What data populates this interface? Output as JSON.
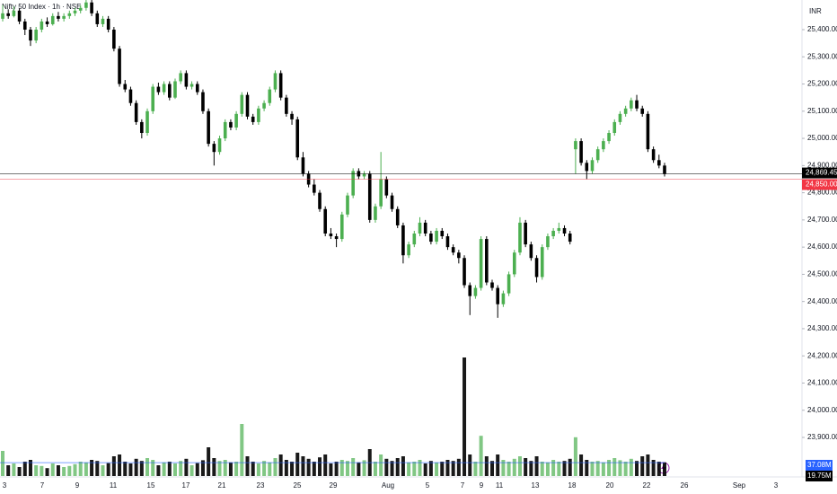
{
  "chart_data": {
    "type": "candlestick",
    "title": "Nifty 50 Index · 1h · NSE",
    "currency": "INR",
    "ylim": [
      23758,
      25509
    ],
    "yticks": [
      {
        "value": 23900,
        "label": "23,900.00"
      },
      {
        "value": 24000,
        "label": "24,000.00"
      },
      {
        "value": 24100,
        "label": "24,100.00"
      },
      {
        "value": 24200,
        "label": "24,200.00"
      },
      {
        "value": 24300,
        "label": "24,300.00"
      },
      {
        "value": 24400,
        "label": "24,400.00"
      },
      {
        "value": 24500,
        "label": "24,500.00"
      },
      {
        "value": 24600,
        "label": "24,600.00"
      },
      {
        "value": 24700,
        "label": "24,700.00"
      },
      {
        "value": 24800,
        "label": "24,800.00"
      },
      {
        "value": 24900,
        "label": "24,900.00"
      },
      {
        "value": 25000,
        "label": "25,000.00"
      },
      {
        "value": 25100,
        "label": "25,100.00"
      },
      {
        "value": 25200,
        "label": "25,200.00"
      },
      {
        "value": 25300,
        "label": "25,300.00"
      },
      {
        "value": 25400,
        "label": "25,400.00"
      }
    ],
    "time_labels": [
      "3",
      "7",
      "9",
      "11",
      "15",
      "17",
      "21",
      "23",
      "25",
      "29",
      "Aug",
      "5",
      "7",
      "9",
      "11",
      "13",
      "18",
      "20",
      "22",
      "26",
      "Sep",
      "3"
    ],
    "up_color": "#4caf50",
    "down_color": "#000000",
    "price_lines": [
      {
        "value": 24869.45,
        "label": "24,869.45",
        "color": "#000000"
      },
      {
        "value": 24850,
        "label": "24,850.00",
        "color": "#f23645"
      }
    ],
    "volume_ylim": [
      0,
      500
    ],
    "volume_labels": [
      {
        "value": 37.08,
        "label": "37.08M",
        "color": "#2962ff"
      },
      {
        "value": 19.75,
        "label": "19.75M",
        "color": "#000000"
      }
    ],
    "ohlc": [
      [
        25440,
        25490,
        25430,
        25460
      ],
      [
        25460,
        25475,
        25440,
        25450
      ],
      [
        25450,
        25485,
        25445,
        25470
      ],
      [
        25470,
        25478,
        25420,
        25430
      ],
      [
        25430,
        25440,
        25380,
        25400
      ],
      [
        25400,
        25410,
        25340,
        25360
      ],
      [
        25360,
        25410,
        25350,
        25400
      ],
      [
        25400,
        25440,
        25390,
        25430
      ],
      [
        25430,
        25445,
        25410,
        25420
      ],
      [
        25420,
        25460,
        25415,
        25450
      ],
      [
        25450,
        25465,
        25430,
        25440
      ],
      [
        25440,
        25460,
        25430,
        25450
      ],
      [
        25450,
        25470,
        25440,
        25460
      ],
      [
        25460,
        25480,
        25450,
        25470
      ],
      [
        25470,
        25490,
        25460,
        25480
      ],
      [
        25480,
        25520,
        25470,
        25500
      ],
      [
        25500,
        25510,
        25450,
        25460
      ],
      [
        25460,
        25470,
        25410,
        25420
      ],
      [
        25420,
        25450,
        25410,
        25440
      ],
      [
        25440,
        25450,
        25390,
        25400
      ],
      [
        25400,
        25410,
        25320,
        25330
      ],
      [
        25330,
        25340,
        25190,
        25200
      ],
      [
        25200,
        25215,
        25170,
        25180
      ],
      [
        25180,
        25190,
        25120,
        25130
      ],
      [
        25130,
        25140,
        25050,
        25060
      ],
      [
        25060,
        25070,
        25000,
        25020
      ],
      [
        25020,
        25110,
        25010,
        25100
      ],
      [
        25100,
        25200,
        25090,
        25190
      ],
      [
        25190,
        25205,
        25160,
        25170
      ],
      [
        25170,
        25210,
        25160,
        25200
      ],
      [
        25200,
        25210,
        25140,
        25150
      ],
      [
        25150,
        25220,
        25145,
        25210
      ],
      [
        25210,
        25250,
        25200,
        25240
      ],
      [
        25240,
        25250,
        25180,
        25190
      ],
      [
        25190,
        25210,
        25180,
        25200
      ],
      [
        25200,
        25210,
        25160,
        25170
      ],
      [
        25170,
        25180,
        25090,
        25100
      ],
      [
        25100,
        25110,
        24970,
        24980
      ],
      [
        24980,
        24990,
        24900,
        24950
      ],
      [
        24950,
        25010,
        24940,
        25000
      ],
      [
        25000,
        25070,
        24990,
        25060
      ],
      [
        25060,
        25070,
        25030,
        25040
      ],
      [
        25040,
        25100,
        25030,
        25090
      ],
      [
        25090,
        25170,
        25080,
        25160
      ],
      [
        25160,
        25170,
        25070,
        25080
      ],
      [
        25080,
        25090,
        25050,
        25060
      ],
      [
        25060,
        25120,
        25050,
        25110
      ],
      [
        25110,
        25140,
        25100,
        25130
      ],
      [
        25130,
        25190,
        25120,
        25180
      ],
      [
        25180,
        25250,
        25170,
        25240
      ],
      [
        25240,
        25250,
        25140,
        25150
      ],
      [
        25150,
        25160,
        25080,
        25090
      ],
      [
        25090,
        25100,
        25050,
        25070
      ],
      [
        25070,
        25080,
        24920,
        24930
      ],
      [
        24930,
        24950,
        24860,
        24870
      ],
      [
        24870,
        24880,
        24820,
        24830
      ],
      [
        24830,
        24850,
        24790,
        24800
      ],
      [
        24800,
        24810,
        24730,
        24740
      ],
      [
        24740,
        24750,
        24640,
        24650
      ],
      [
        24650,
        24670,
        24630,
        24640
      ],
      [
        24640,
        24650,
        24600,
        24630
      ],
      [
        24630,
        24730,
        24620,
        24720
      ],
      [
        24720,
        24800,
        24710,
        24790
      ],
      [
        24790,
        24890,
        24780,
        24880
      ],
      [
        24880,
        24890,
        24850,
        24860
      ],
      [
        24860,
        24880,
        24850,
        24870
      ],
      [
        24870,
        24880,
        24690,
        24700
      ],
      [
        24700,
        24760,
        24690,
        24750
      ],
      [
        24750,
        24950,
        24740,
        24850
      ],
      [
        24850,
        24860,
        24780,
        24790
      ],
      [
        24790,
        24800,
        24730,
        24740
      ],
      [
        24740,
        24750,
        24670,
        24680
      ],
      [
        24680,
        24690,
        24540,
        24570
      ],
      [
        24570,
        24620,
        24560,
        24610
      ],
      [
        24610,
        24660,
        24600,
        24650
      ],
      [
        24650,
        24710,
        24640,
        24690
      ],
      [
        24690,
        24700,
        24640,
        24650
      ],
      [
        24650,
        24660,
        24610,
        24620
      ],
      [
        24620,
        24670,
        24610,
        24660
      ],
      [
        24660,
        24670,
        24630,
        24640
      ],
      [
        24640,
        24650,
        24590,
        24600
      ],
      [
        24600,
        24610,
        24570,
        24580
      ],
      [
        24580,
        24590,
        24540,
        24560
      ],
      [
        24560,
        24570,
        24450,
        24460
      ],
      [
        24460,
        24470,
        24350,
        24420
      ],
      [
        24420,
        24460,
        24410,
        24450
      ],
      [
        24450,
        24640,
        24440,
        24630
      ],
      [
        24630,
        24640,
        24460,
        24470
      ],
      [
        24470,
        24480,
        24440,
        24450
      ],
      [
        24450,
        24460,
        24340,
        24390
      ],
      [
        24390,
        24440,
        24380,
        24430
      ],
      [
        24430,
        24510,
        24420,
        24500
      ],
      [
        24500,
        24590,
        24490,
        24580
      ],
      [
        24580,
        24710,
        24570,
        24690
      ],
      [
        24690,
        24700,
        24600,
        24610
      ],
      [
        24610,
        24620,
        24550,
        24560
      ],
      [
        24560,
        24570,
        24470,
        24490
      ],
      [
        24490,
        24610,
        24480,
        24600
      ],
      [
        24600,
        24650,
        24590,
        24640
      ],
      [
        24640,
        24670,
        24630,
        24660
      ],
      [
        24660,
        24690,
        24650,
        24670
      ],
      [
        24670,
        24680,
        24640,
        24650
      ],
      [
        24650,
        24660,
        24610,
        24620
      ],
      [
        24960,
        25000,
        24870,
        24990
      ],
      [
        24990,
        25000,
        24900,
        24910
      ],
      [
        24910,
        24920,
        24850,
        24880
      ],
      [
        24880,
        24930,
        24870,
        24920
      ],
      [
        24920,
        24970,
        24910,
        24960
      ],
      [
        24960,
        25000,
        24950,
        24990
      ],
      [
        24990,
        25030,
        24980,
        25020
      ],
      [
        25020,
        25070,
        25010,
        25060
      ],
      [
        25060,
        25100,
        25050,
        25090
      ],
      [
        25090,
        25120,
        25080,
        25110
      ],
      [
        25110,
        25150,
        25100,
        25140
      ],
      [
        25140,
        25160,
        25100,
        25110
      ],
      [
        25110,
        25120,
        25080,
        25090
      ],
      [
        25090,
        25100,
        24950,
        24960
      ],
      [
        24960,
        24970,
        24910,
        24920
      ],
      [
        24920,
        24940,
        24890,
        24900
      ],
      [
        24900,
        24910,
        24860,
        24869.45
      ]
    ],
    "volume": [
      70,
      30,
      35,
      25,
      40,
      45,
      30,
      28,
      22,
      35,
      30,
      25,
      28,
      33,
      40,
      38,
      45,
      42,
      30,
      36,
      55,
      60,
      40,
      35,
      48,
      42,
      50,
      45,
      30,
      38,
      40,
      35,
      42,
      48,
      30,
      36,
      44,
      80,
      50,
      42,
      45,
      38,
      40,
      145,
      55,
      40,
      35,
      42,
      38,
      50,
      60,
      45,
      40,
      65,
      55,
      48,
      40,
      52,
      60,
      35,
      40,
      45,
      42,
      50,
      38,
      44,
      75,
      40,
      60,
      48,
      42,
      50,
      55,
      38,
      40,
      45,
      35,
      42,
      38,
      40,
      45,
      42,
      48,
      330,
      60,
      40,
      112,
      55,
      42,
      60,
      45,
      40,
      48,
      55,
      50,
      42,
      55,
      40,
      38,
      45,
      40,
      42,
      48,
      108,
      60,
      45,
      40,
      42,
      38,
      45,
      50,
      44,
      40,
      48,
      42,
      55,
      60,
      45,
      40,
      38
    ]
  }
}
